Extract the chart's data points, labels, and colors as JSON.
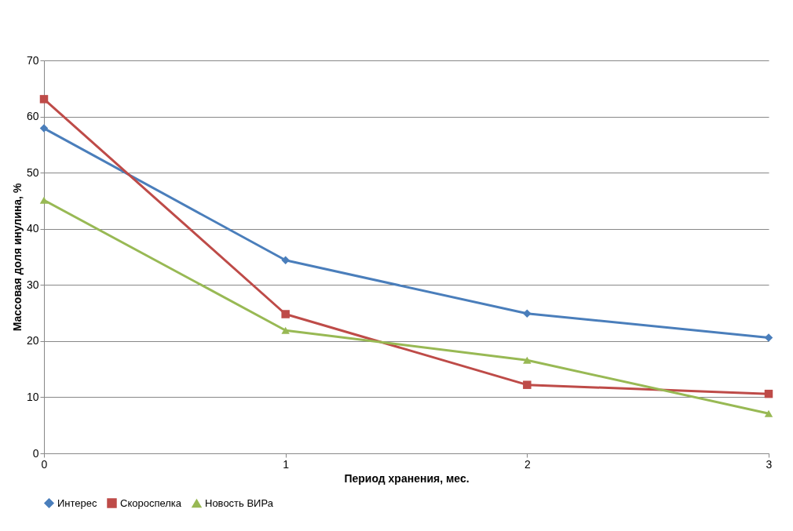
{
  "chart_data": {
    "type": "line",
    "xlabel": "Период хранения, мес.",
    "ylabel": "Массовая доля инулина, %",
    "x": [
      0,
      1,
      2,
      3
    ],
    "xlim": [
      0,
      3
    ],
    "xticks": [
      0,
      1,
      2,
      3
    ],
    "ylim": [
      0,
      70
    ],
    "yticks": [
      0,
      10,
      20,
      30,
      40,
      50,
      60,
      70
    ],
    "grid": "y",
    "legend": "bottom",
    "line_style": "solid",
    "series": [
      {
        "name": "Интерес",
        "color": "#4a7ebb",
        "marker": "diamond",
        "values": [
          57.9,
          34.4,
          24.9,
          20.6
        ]
      },
      {
        "name": "Скороспелка",
        "color": "#be4b48",
        "marker": "square",
        "values": [
          63.1,
          24.8,
          12.2,
          10.6
        ]
      },
      {
        "name": "Новость ВИРа",
        "color": "#98b954",
        "marker": "triangle",
        "values": [
          45.1,
          21.9,
          16.6,
          7.1
        ]
      }
    ]
  }
}
